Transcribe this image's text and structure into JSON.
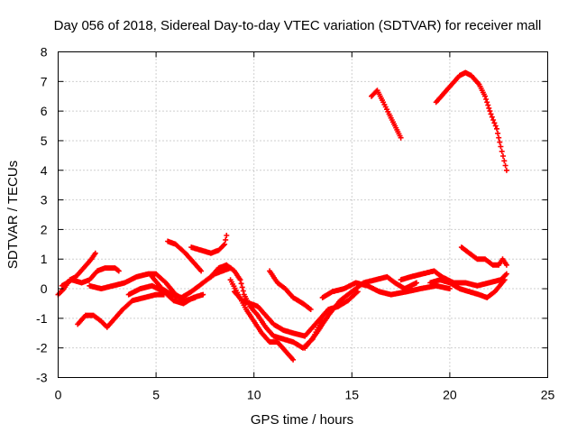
{
  "chart_data": {
    "type": "scatter",
    "title": "Day 056 of 2018, Sidereal Day-to-day VTEC variation (SDTVAR) for receiver mall",
    "xlabel": "GPS time / hours",
    "ylabel": "SDTVAR / TECUs",
    "xlim": [
      0,
      25
    ],
    "ylim": [
      -3,
      8
    ],
    "xticks": [
      0,
      5,
      10,
      15,
      20,
      25
    ],
    "yticks": [
      -3,
      -2,
      -1,
      0,
      1,
      2,
      3,
      4,
      5,
      6,
      7,
      8
    ],
    "xtick_labels": [
      "0",
      "5",
      "10",
      "15",
      "20",
      "25"
    ],
    "ytick_labels": [
      "-3",
      "-2",
      "-1",
      "0",
      "1",
      "2",
      "3",
      "4",
      "5",
      "6",
      "7",
      "8"
    ],
    "grid": true,
    "marker": "+",
    "color": "#ff0000",
    "series": [
      {
        "name": "arc-1",
        "points": [
          [
            0.0,
            -0.2
          ],
          [
            0.3,
            0.0
          ],
          [
            0.6,
            0.3
          ],
          [
            0.9,
            0.4
          ],
          [
            1.3,
            0.7
          ],
          [
            1.7,
            1.0
          ],
          [
            1.9,
            1.2
          ]
        ]
      },
      {
        "name": "arc-2",
        "points": [
          [
            0.2,
            0.1
          ],
          [
            0.7,
            0.3
          ],
          [
            1.2,
            0.2
          ],
          [
            1.6,
            0.3
          ],
          [
            2.0,
            0.6
          ],
          [
            2.4,
            0.7
          ],
          [
            2.9,
            0.7
          ],
          [
            3.1,
            0.6
          ]
        ]
      },
      {
        "name": "arc-3",
        "points": [
          [
            1.0,
            -1.2
          ],
          [
            1.4,
            -0.9
          ],
          [
            1.8,
            -0.9
          ],
          [
            2.2,
            -1.1
          ],
          [
            2.5,
            -1.3
          ],
          [
            2.9,
            -1.0
          ],
          [
            3.3,
            -0.7
          ],
          [
            3.8,
            -0.4
          ],
          [
            4.4,
            -0.3
          ],
          [
            5.0,
            -0.2
          ],
          [
            5.4,
            -0.2
          ]
        ]
      },
      {
        "name": "arc-4",
        "points": [
          [
            1.6,
            0.1
          ],
          [
            2.2,
            0.0
          ],
          [
            2.8,
            0.1
          ],
          [
            3.4,
            0.2
          ],
          [
            4.0,
            0.4
          ],
          [
            4.6,
            0.5
          ],
          [
            5.0,
            0.5
          ],
          [
            5.5,
            0.2
          ],
          [
            6.0,
            -0.2
          ],
          [
            6.5,
            -0.4
          ],
          [
            7.0,
            -0.3
          ]
        ]
      },
      {
        "name": "arc-5",
        "points": [
          [
            3.6,
            -0.2
          ],
          [
            4.2,
            0.0
          ],
          [
            4.8,
            0.1
          ],
          [
            5.4,
            -0.1
          ],
          [
            5.9,
            -0.4
          ],
          [
            6.4,
            -0.5
          ],
          [
            6.9,
            -0.3
          ],
          [
            7.4,
            -0.2
          ]
        ]
      },
      {
        "name": "arc-6",
        "points": [
          [
            4.8,
            0.4
          ],
          [
            5.3,
            0.0
          ],
          [
            5.8,
            -0.2
          ],
          [
            6.3,
            -0.3
          ],
          [
            6.8,
            -0.1
          ],
          [
            7.4,
            0.2
          ],
          [
            8.0,
            0.5
          ],
          [
            8.4,
            0.6
          ],
          [
            8.8,
            0.7
          ]
        ]
      },
      {
        "name": "arc-7",
        "points": [
          [
            5.6,
            1.6
          ],
          [
            6.0,
            1.5
          ],
          [
            6.5,
            1.2
          ],
          [
            6.9,
            0.9
          ],
          [
            7.3,
            0.6
          ]
        ]
      },
      {
        "name": "arc-8",
        "points": [
          [
            6.8,
            1.4
          ],
          [
            7.3,
            1.3
          ],
          [
            7.8,
            1.2
          ],
          [
            8.2,
            1.3
          ],
          [
            8.5,
            1.5
          ],
          [
            8.6,
            1.8
          ]
        ]
      },
      {
        "name": "arc-9",
        "points": [
          [
            7.8,
            0.4
          ],
          [
            8.2,
            0.7
          ],
          [
            8.6,
            0.8
          ],
          [
            9.0,
            0.6
          ],
          [
            9.3,
            0.3
          ],
          [
            9.5,
            -0.2
          ],
          [
            9.8,
            -0.6
          ],
          [
            10.2,
            -0.9
          ],
          [
            10.6,
            -1.3
          ],
          [
            11.0,
            -1.6
          ],
          [
            11.5,
            -1.7
          ],
          [
            12.0,
            -1.8
          ],
          [
            12.5,
            -2.0
          ],
          [
            13.0,
            -1.7
          ],
          [
            13.5,
            -1.0
          ]
        ]
      },
      {
        "name": "arc-10",
        "points": [
          [
            8.8,
            0.3
          ],
          [
            9.2,
            -0.2
          ],
          [
            9.6,
            -0.7
          ],
          [
            10.0,
            -1.1
          ],
          [
            10.4,
            -1.5
          ],
          [
            10.8,
            -1.8
          ],
          [
            11.2,
            -1.8
          ],
          [
            11.6,
            -2.1
          ],
          [
            12.0,
            -2.4
          ]
        ]
      },
      {
        "name": "arc-11",
        "points": [
          [
            9.0,
            -0.1
          ],
          [
            9.4,
            -0.4
          ],
          [
            9.8,
            -0.5
          ],
          [
            10.2,
            -0.6
          ],
          [
            10.6,
            -0.9
          ],
          [
            11.0,
            -1.2
          ],
          [
            11.5,
            -1.4
          ],
          [
            12.0,
            -1.5
          ],
          [
            12.6,
            -1.6
          ],
          [
            13.0,
            -1.3
          ],
          [
            13.4,
            -1.0
          ],
          [
            13.8,
            -0.7
          ],
          [
            14.3,
            -0.6
          ],
          [
            14.8,
            -0.4
          ],
          [
            15.3,
            -0.1
          ]
        ]
      },
      {
        "name": "arc-12",
        "points": [
          [
            10.8,
            0.6
          ],
          [
            11.2,
            0.2
          ],
          [
            11.6,
            0.0
          ],
          [
            12.0,
            -0.3
          ],
          [
            12.5,
            -0.5
          ],
          [
            12.9,
            -0.7
          ]
        ]
      },
      {
        "name": "arc-13",
        "points": [
          [
            12.6,
            -2.0
          ],
          [
            13.2,
            -1.5
          ],
          [
            13.8,
            -0.9
          ],
          [
            14.4,
            -0.4
          ],
          [
            15.0,
            -0.1
          ],
          [
            15.6,
            0.2
          ],
          [
            16.2,
            0.3
          ],
          [
            16.8,
            0.4
          ],
          [
            17.2,
            0.2
          ],
          [
            17.7,
            0.0
          ],
          [
            18.3,
            0.2
          ]
        ]
      },
      {
        "name": "arc-14",
        "points": [
          [
            13.5,
            -0.3
          ],
          [
            14.0,
            -0.1
          ],
          [
            14.6,
            0.0
          ],
          [
            15.2,
            0.2
          ],
          [
            15.8,
            0.1
          ],
          [
            16.4,
            -0.1
          ],
          [
            17.0,
            -0.2
          ],
          [
            17.8,
            -0.1
          ],
          [
            18.5,
            0.0
          ],
          [
            19.3,
            0.1
          ],
          [
            20.0,
            0.0
          ]
        ]
      },
      {
        "name": "arc-15",
        "points": [
          [
            16.0,
            6.5
          ],
          [
            16.3,
            6.7
          ],
          [
            16.6,
            6.3
          ],
          [
            16.9,
            5.9
          ],
          [
            17.2,
            5.5
          ],
          [
            17.5,
            5.1
          ]
        ]
      },
      {
        "name": "arc-16",
        "points": [
          [
            17.5,
            0.3
          ],
          [
            18.0,
            0.4
          ],
          [
            18.6,
            0.5
          ],
          [
            19.2,
            0.6
          ],
          [
            19.6,
            0.4
          ],
          [
            20.2,
            0.2
          ],
          [
            20.8,
            0.2
          ],
          [
            21.4,
            0.1
          ],
          [
            22.0,
            0.2
          ],
          [
            22.6,
            0.3
          ],
          [
            22.9,
            0.5
          ]
        ]
      },
      {
        "name": "arc-17",
        "points": [
          [
            19.0,
            0.2
          ],
          [
            19.5,
            0.3
          ],
          [
            20.0,
            0.2
          ],
          [
            20.5,
            0.0
          ],
          [
            21.0,
            -0.1
          ],
          [
            21.5,
            -0.2
          ],
          [
            21.9,
            -0.3
          ],
          [
            22.3,
            -0.1
          ],
          [
            22.8,
            0.3
          ]
        ]
      },
      {
        "name": "arc-18",
        "points": [
          [
            19.3,
            6.3
          ],
          [
            19.7,
            6.6
          ],
          [
            20.1,
            6.9
          ],
          [
            20.5,
            7.2
          ],
          [
            20.8,
            7.3
          ],
          [
            21.1,
            7.2
          ],
          [
            21.5,
            6.9
          ],
          [
            21.8,
            6.5
          ],
          [
            22.1,
            5.9
          ],
          [
            22.4,
            5.4
          ],
          [
            22.6,
            4.8
          ],
          [
            22.9,
            4.0
          ]
        ]
      },
      {
        "name": "arc-19",
        "points": [
          [
            20.6,
            1.4
          ],
          [
            21.0,
            1.2
          ],
          [
            21.4,
            1.0
          ],
          [
            21.8,
            1.0
          ],
          [
            22.2,
            0.8
          ],
          [
            22.5,
            0.8
          ],
          [
            22.7,
            1.0
          ],
          [
            22.9,
            0.8
          ]
        ]
      }
    ]
  }
}
